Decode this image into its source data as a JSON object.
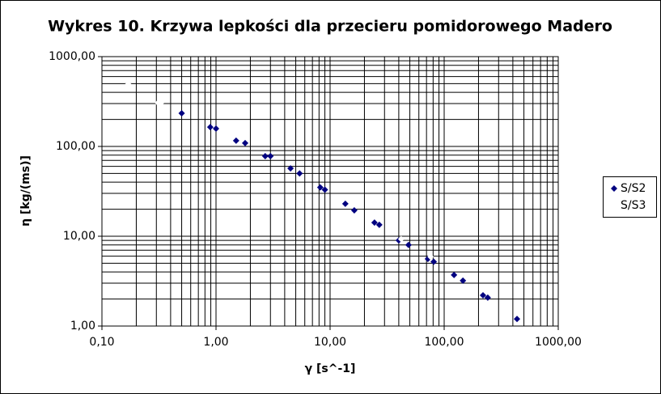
{
  "chart_data": {
    "type": "scatter",
    "title": "Wykres 10. Krzywa lepkości dla przecieru pomidorowego Madero",
    "x_label": "γ [s^-1]",
    "y_label": "η [kg/(ms)]",
    "xlog": true,
    "ylog": true,
    "grid": true,
    "minor_grid": true,
    "legend": "right",
    "xlim": [
      0.1,
      1000
    ],
    "ylim": [
      1,
      1000
    ],
    "xticks": [
      {
        "value": 0.1,
        "label": "0,10"
      },
      {
        "value": 1,
        "label": "1,00"
      },
      {
        "value": 10,
        "label": "10,00"
      },
      {
        "value": 100,
        "label": "100,00"
      },
      {
        "value": 1000,
        "label": "1000,00"
      }
    ],
    "yticks": [
      {
        "value": 1,
        "label": "1,00"
      },
      {
        "value": 10,
        "label": "10,00"
      },
      {
        "value": 100,
        "label": "100,00"
      },
      {
        "value": 1000,
        "label": "1000,00"
      }
    ],
    "series": [
      {
        "name": "S/S2",
        "color": "#000080",
        "x": [
          0.5,
          0.89,
          1.0,
          1.5,
          1.8,
          2.7,
          3.0,
          4.5,
          5.4,
          8.2,
          9.0,
          13.6,
          16.3,
          24.5,
          27,
          40,
          48.7,
          72,
          81,
          122,
          146,
          219,
          241,
          435
        ],
        "values": [
          234,
          164,
          158,
          116,
          109,
          78,
          78,
          57,
          50,
          35,
          33,
          23,
          19.4,
          14.2,
          13.4,
          9.0,
          8.0,
          5.6,
          5.2,
          3.7,
          3.2,
          2.2,
          2.07,
          1.2
        ]
      },
      {
        "name": "S/S3",
        "color": "#ffffff",
        "x": [
          0.17,
          0.31,
          0.33,
          42,
          76
        ],
        "values": [
          494,
          306,
          306,
          9.3,
          5.9
        ]
      }
    ]
  }
}
